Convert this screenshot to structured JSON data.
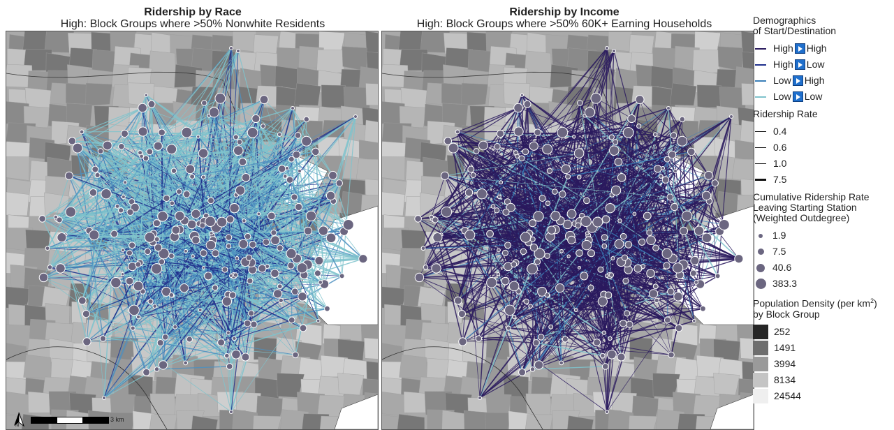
{
  "panels": [
    {
      "title": "Ridership by Race",
      "subtitle": "High: Block Groups where >50% Nonwhite Residents"
    },
    {
      "title": "Ridership by Income",
      "subtitle": "High: Block Groups where >50% 60K+ Earning Households"
    }
  ],
  "legend": {
    "demographics_title_1": "Demographics",
    "demographics_title_2": "of Start/Destination",
    "demographics": [
      {
        "from": "High",
        "to": "High",
        "color": "#2a1a5e"
      },
      {
        "from": "High",
        "to": "Low",
        "color": "#1f2f8c"
      },
      {
        "from": "Low",
        "to": "High",
        "color": "#3a7fb8"
      },
      {
        "from": "Low",
        "to": "Low",
        "color": "#7fc3cc"
      }
    ],
    "ridership_title": "Ridership Rate",
    "ridership": [
      "0.4",
      "0.6",
      "1.0",
      "7.5"
    ],
    "cumulative_title_1": "Cumulative Ridership Rate",
    "cumulative_title_2": "Leaving Starting Station",
    "cumulative_title_3": "(Weighted Outdegree)",
    "cumulative": [
      "1.9",
      "7.5",
      "40.6",
      "383.3"
    ],
    "density_title_1": "Population Density (per km",
    "density_sup": "2",
    "density_title_1b": ")",
    "density_title_2": "by Block Group",
    "density": [
      {
        "label": "252",
        "color": "#262626"
      },
      {
        "label": "1491",
        "color": "#6e6e6e"
      },
      {
        "label": "3994",
        "color": "#9a9a9a"
      },
      {
        "label": "8134",
        "color": "#c4c4c4"
      },
      {
        "label": "24544",
        "color": "#efefef"
      }
    ]
  },
  "scale": {
    "label": "3 km"
  },
  "icons": {
    "north": "north-arrow-icon"
  }
}
